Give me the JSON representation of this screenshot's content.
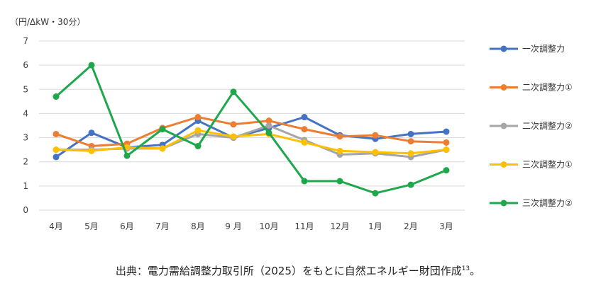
{
  "chart_data": {
    "type": "line",
    "unit_label": "（円/ΔkW・30分）",
    "categories": [
      "4月",
      "5月",
      "6月",
      "7月",
      "8月",
      "9 月",
      "10月",
      "11月",
      "12月",
      "1月",
      "2月",
      "3月"
    ],
    "ylim": [
      0,
      7
    ],
    "yticks": [
      "0",
      "1",
      "2",
      "3",
      "4",
      "5",
      "6",
      "7"
    ],
    "grid": true,
    "legend_position": "right",
    "series": [
      {
        "name": "一次調整力",
        "color": "#4472C4",
        "values": [
          2.2,
          3.2,
          2.6,
          2.7,
          3.7,
          3.0,
          3.4,
          3.85,
          3.1,
          2.95,
          3.15,
          3.25
        ]
      },
      {
        "name": "二次調整力①",
        "color": "#ED7D31",
        "values": [
          3.15,
          2.65,
          2.75,
          3.4,
          3.85,
          3.55,
          3.7,
          3.35,
          3.05,
          3.1,
          2.85,
          2.8
        ]
      },
      {
        "name": "二次調整力②",
        "color": "#A5A5A5",
        "values": [
          2.5,
          2.5,
          2.55,
          2.55,
          3.15,
          3.0,
          3.5,
          2.9,
          2.3,
          2.35,
          2.2,
          2.5
        ]
      },
      {
        "name": "三次調整力①",
        "color": "#FFC000",
        "values": [
          2.5,
          2.45,
          2.6,
          2.55,
          3.3,
          3.05,
          3.15,
          2.8,
          2.45,
          2.4,
          2.35,
          2.5
        ]
      },
      {
        "name": "三次調整力②",
        "color": "#1FA84B",
        "values": [
          4.7,
          6.0,
          2.25,
          3.35,
          2.65,
          4.9,
          3.2,
          1.2,
          1.2,
          0.7,
          1.05,
          1.65
        ]
      }
    ]
  },
  "source_note": {
    "text": "出典：電力需給調整力取引所（2025）をもとに自然エネルギー財団作成",
    "footnote_number": "13",
    "end_mark": "。"
  }
}
